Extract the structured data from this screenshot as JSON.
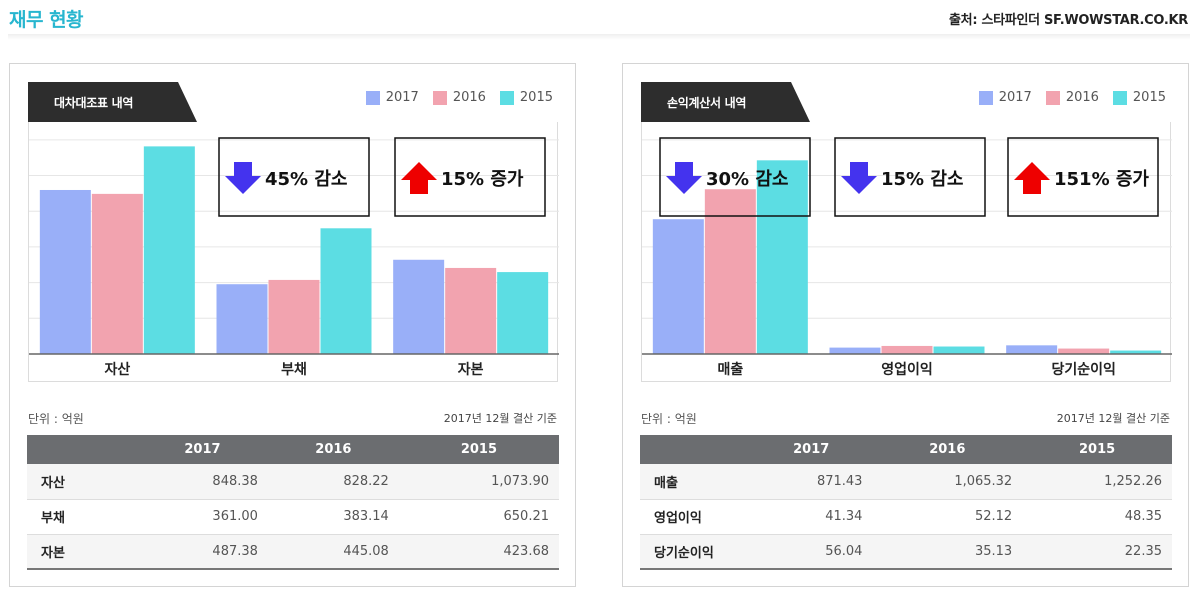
{
  "header": {
    "title": "재무 현황",
    "source": "출처: 스타파인더 SF.WOWSTAR.CO.KR"
  },
  "colors": {
    "2017": "#99aff8",
    "2016": "#f2a3af",
    "2015": "#5cdde3",
    "up": "#ee0000",
    "down": "#4433ee"
  },
  "legend": [
    "2017",
    "2016",
    "2015"
  ],
  "panels": [
    {
      "tab_label": "대차대조표 내역",
      "unit": "단위 : 억원",
      "basis": "2017년 12월 결산 기준",
      "table": {
        "headers": [
          "",
          "2017",
          "2016",
          "2015"
        ],
        "rows": [
          {
            "label": "자산",
            "values": [
              "848.38",
              "828.22",
              "1,073.90"
            ]
          },
          {
            "label": "부채",
            "values": [
              "361.00",
              "383.14",
              "650.21"
            ]
          },
          {
            "label": "자본",
            "values": [
              "487.38",
              "445.08",
              "423.68"
            ]
          }
        ]
      },
      "annotations": [
        {
          "direction": "down",
          "text": "45% 감소"
        },
        {
          "direction": "up",
          "text": "15% 증가"
        }
      ]
    },
    {
      "tab_label": "손익계산서 내역",
      "unit": "단위 : 억원",
      "basis": "2017년 12월 결산 기준",
      "table": {
        "headers": [
          "",
          "2017",
          "2016",
          "2015"
        ],
        "rows": [
          {
            "label": "매출",
            "values": [
              "871.43",
              "1,065.32",
              "1,252.26"
            ]
          },
          {
            "label": "영업이익",
            "values": [
              "41.34",
              "52.12",
              "48.35"
            ]
          },
          {
            "label": "당기순이익",
            "values": [
              "56.04",
              "35.13",
              "22.35"
            ]
          }
        ]
      },
      "annotations": [
        {
          "direction": "down",
          "text": "30% 감소"
        },
        {
          "direction": "down",
          "text": "15% 감소"
        },
        {
          "direction": "up",
          "text": "151% 증가"
        }
      ]
    }
  ],
  "chart_data": [
    {
      "type": "bar",
      "categories": [
        "자산",
        "부채",
        "자본"
      ],
      "series": [
        {
          "name": "2017",
          "values": [
            848.38,
            361.0,
            487.38
          ]
        },
        {
          "name": "2016",
          "values": [
            828.22,
            383.14,
            445.08
          ]
        },
        {
          "name": "2015",
          "values": [
            1073.9,
            650.21,
            423.68
          ]
        }
      ],
      "ylim": [
        0,
        1200
      ],
      "grid": true,
      "legend": "top-right"
    },
    {
      "type": "bar",
      "categories": [
        "매출",
        "영업이익",
        "당기순이익"
      ],
      "series": [
        {
          "name": "2017",
          "values": [
            871.43,
            41.34,
            56.04
          ]
        },
        {
          "name": "2016",
          "values": [
            1065.32,
            52.12,
            35.13
          ]
        },
        {
          "name": "2015",
          "values": [
            1252.26,
            48.35,
            22.35
          ]
        }
      ],
      "ylim": [
        0,
        1500
      ],
      "grid": true,
      "legend": "top-right"
    }
  ]
}
